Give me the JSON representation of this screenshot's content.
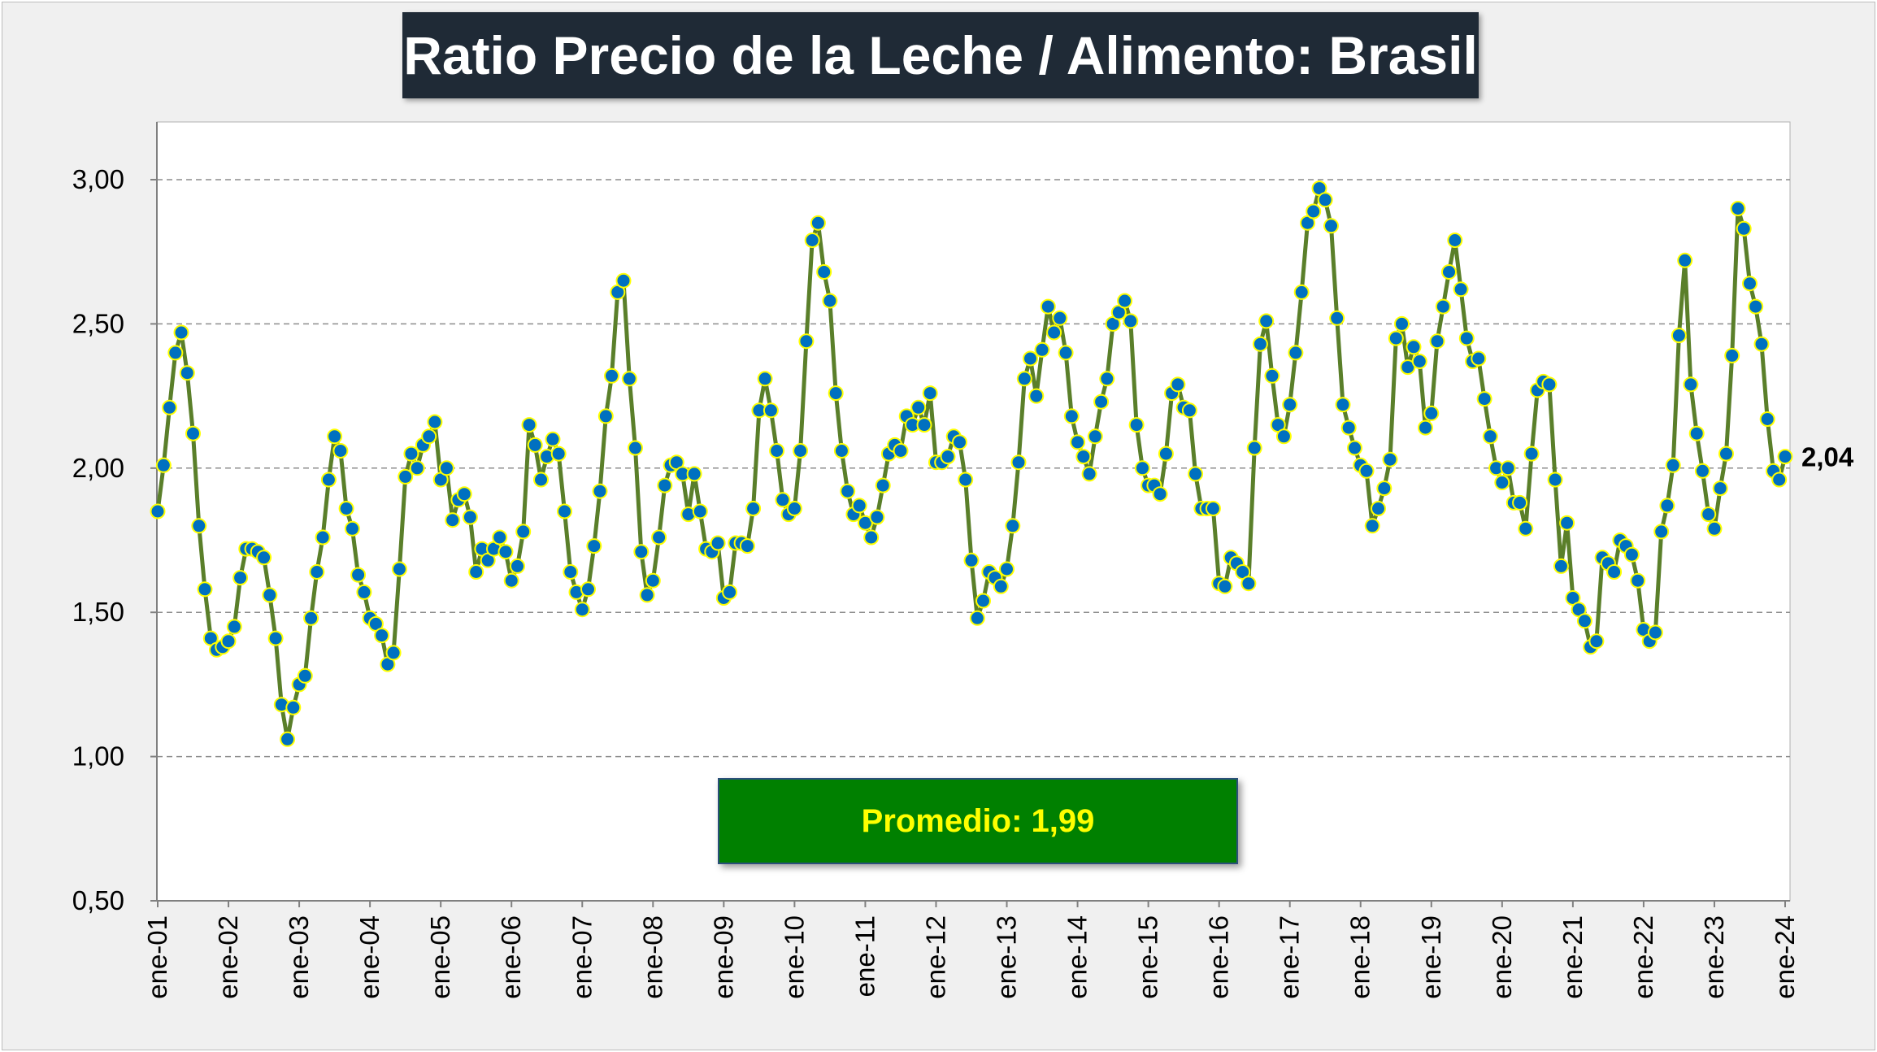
{
  "chart_data": {
    "type": "line",
    "title": "Ratio Precio de la Leche / Alimento: Brasil",
    "xlabel": "",
    "ylabel": "",
    "ylim": [
      0.5,
      3.0
    ],
    "yticks": [
      "0,50",
      "1,00",
      "1,50",
      "2,00",
      "2,50",
      "3,00"
    ],
    "x_tick_labels": [
      "ene-01",
      "ene-02",
      "ene-03",
      "ene-04",
      "ene-05",
      "ene-06",
      "ene-07",
      "ene-08",
      "ene-09",
      "ene-10",
      "ene-11",
      "ene-12",
      "ene-13",
      "ene-14",
      "ene-15",
      "ene-16",
      "ene-17",
      "ene-18",
      "ene-19",
      "ene-20",
      "ene-21",
      "ene-22",
      "ene-23",
      "ene-24"
    ],
    "grid": "horizontal dashed",
    "line_color": "#5a7f2a",
    "marker_color": "#0070c0",
    "marker_edge_color": "#ffff00",
    "series": [
      {
        "start": "ene-01",
        "frequency": "monthly",
        "values": [
          1.85,
          2.01,
          2.21,
          2.4,
          2.47,
          2.33,
          2.12,
          1.8,
          1.58,
          1.41,
          1.37,
          1.38,
          1.4,
          1.45,
          1.62,
          1.72,
          1.72,
          1.71,
          1.69,
          1.56,
          1.41,
          1.18,
          1.06,
          1.17,
          1.25,
          1.28,
          1.48,
          1.64,
          1.76,
          1.96,
          2.11,
          2.06,
          1.86,
          1.79,
          1.63,
          1.57,
          1.48,
          1.46,
          1.42,
          1.32,
          1.36,
          1.65,
          1.97,
          2.05,
          2.0,
          2.08,
          2.11,
          2.16,
          1.96,
          2.0,
          1.82,
          1.89,
          1.91,
          1.83,
          1.64,
          1.72,
          1.68,
          1.72,
          1.76,
          1.71,
          1.61,
          1.66,
          1.78,
          2.15,
          2.08,
          1.96,
          2.04,
          2.1,
          2.05,
          1.85,
          1.64,
          1.57,
          1.51,
          1.58,
          1.73,
          1.92,
          2.18,
          2.32,
          2.61,
          2.65,
          2.31,
          2.07,
          1.71,
          1.56,
          1.61,
          1.76,
          1.94,
          2.01,
          2.02,
          1.98,
          1.84,
          1.98,
          1.85,
          1.72,
          1.71,
          1.74,
          1.55,
          1.57,
          1.74,
          1.74,
          1.73,
          1.86,
          2.2,
          2.31,
          2.2,
          2.06,
          1.89,
          1.84,
          1.86,
          2.06,
          2.44,
          2.79,
          2.85,
          2.68,
          2.58,
          2.26,
          2.06,
          1.92,
          1.84,
          1.87,
          1.81,
          1.76,
          1.83,
          1.94,
          2.05,
          2.08,
          2.06,
          2.18,
          2.15,
          2.21,
          2.15,
          2.26,
          2.02,
          2.02,
          2.04,
          2.11,
          2.09,
          1.96,
          1.68,
          1.48,
          1.54,
          1.64,
          1.62,
          1.59,
          1.65,
          1.8,
          2.02,
          2.31,
          2.38,
          2.25,
          2.41,
          2.56,
          2.47,
          2.52,
          2.4,
          2.18,
          2.09,
          2.04,
          1.98,
          2.11,
          2.23,
          2.31,
          2.5,
          2.54,
          2.58,
          2.51,
          2.15,
          2.0,
          1.94,
          1.94,
          1.91,
          2.05,
          2.26,
          2.29,
          2.21,
          2.2,
          1.98,
          1.86,
          1.86,
          1.86,
          1.6,
          1.59,
          1.69,
          1.67,
          1.64,
          1.6,
          2.07,
          2.43,
          2.51,
          2.32,
          2.15,
          2.11,
          2.22,
          2.4,
          2.61,
          2.85,
          2.89,
          2.97,
          2.93,
          2.84,
          2.52,
          2.22,
          2.14,
          2.07,
          2.01,
          1.99,
          1.8,
          1.86,
          1.93,
          2.03,
          2.45,
          2.5,
          2.35,
          2.42,
          2.37,
          2.14,
          2.19,
          2.44,
          2.56,
          2.68,
          2.79,
          2.62,
          2.45,
          2.37,
          2.38,
          2.24,
          2.11,
          2.0,
          1.95,
          2.0,
          1.88,
          1.88,
          1.79,
          2.05,
          2.27,
          2.3,
          2.29,
          1.96,
          1.66,
          1.81,
          1.55,
          1.51,
          1.47,
          1.38,
          1.4,
          1.69,
          1.67,
          1.64,
          1.75,
          1.73,
          1.7,
          1.61,
          1.44,
          1.4,
          1.43,
          1.78,
          1.87,
          2.01,
          2.46,
          2.72,
          2.29,
          2.12,
          1.99,
          1.84,
          1.79,
          1.93,
          2.05,
          2.39,
          2.9,
          2.83,
          2.64,
          2.56,
          2.43,
          2.17,
          1.99,
          1.96,
          2.04
        ]
      }
    ],
    "last_value_label": "2,04",
    "annotation": "Promedio: 1,99"
  }
}
